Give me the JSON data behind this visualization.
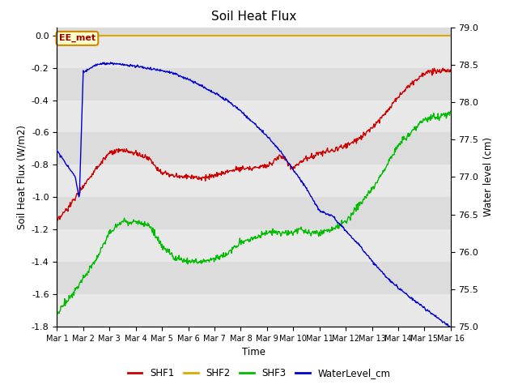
{
  "title": "Soil Heat Flux",
  "xlabel": "Time",
  "ylabel_left": "Soil Heat Flux (W/m2)",
  "ylabel_right": "Water level (cm)",
  "ylim_left": [
    -1.8,
    0.05
  ],
  "ylim_right": [
    75.0,
    79.0
  ],
  "yticks_left": [
    0.0,
    -0.2,
    -0.4,
    -0.6,
    -0.8,
    -1.0,
    -1.2,
    -1.4,
    -1.6,
    -1.8
  ],
  "yticks_right": [
    75.0,
    75.5,
    76.0,
    76.5,
    77.0,
    77.5,
    78.0,
    78.5,
    79.0
  ],
  "bg_color": "#dcdcdc",
  "stripe_light": "#e8e8e8",
  "stripe_dark": "#d0d0d0",
  "fig_color": "#ffffff",
  "annotation_text": "EE_met",
  "annotation_bg": "#ffffcc",
  "annotation_border": "#cc8800",
  "annotation_text_color": "#990000",
  "colors": {
    "SHF1": "#cc0000",
    "SHF2": "#ddaa00",
    "SHF3": "#00bb00",
    "WaterLevel_cm": "#0000cc"
  },
  "legend_labels": [
    "SHF1",
    "SHF2",
    "SHF3",
    "WaterLevel_cm"
  ],
  "x_tick_labels": [
    "Mar 1",
    "Mar 2",
    "Mar 3",
    "Mar 4",
    "Mar 5",
    "Mar 6",
    "Mar 7",
    "Mar 8",
    "Mar 9",
    "Mar 10",
    "Mar 11",
    "Mar 12",
    "Mar 13",
    "Mar 14",
    "Mar 15",
    "Mar 16"
  ],
  "shf1_x": [
    0,
    0.5,
    1.0,
    1.5,
    2.0,
    2.5,
    3.0,
    3.5,
    4.0,
    4.5,
    5.0,
    5.5,
    6.0,
    6.5,
    7.0,
    7.5,
    8.0,
    8.2,
    8.5,
    8.8,
    9.0,
    9.3,
    9.5,
    10.0,
    10.5,
    11.0,
    11.5,
    12.0,
    12.5,
    13.0,
    13.5,
    14.0,
    14.5,
    15.0
  ],
  "shf1_y": [
    -1.15,
    -1.05,
    -0.93,
    -0.82,
    -0.73,
    -0.71,
    -0.73,
    -0.76,
    -0.85,
    -0.87,
    -0.87,
    -0.88,
    -0.87,
    -0.84,
    -0.82,
    -0.82,
    -0.8,
    -0.79,
    -0.74,
    -0.79,
    -0.82,
    -0.78,
    -0.76,
    -0.73,
    -0.71,
    -0.68,
    -0.64,
    -0.57,
    -0.48,
    -0.38,
    -0.3,
    -0.23,
    -0.22,
    -0.22
  ],
  "shf3_x": [
    0,
    0.3,
    0.6,
    1.0,
    1.5,
    2.0,
    2.5,
    3.0,
    3.5,
    4.0,
    4.5,
    5.0,
    5.5,
    6.0,
    6.5,
    7.0,
    7.5,
    8.0,
    8.5,
    9.0,
    9.3,
    9.5,
    10.0,
    10.5,
    11.0,
    11.5,
    12.0,
    12.5,
    13.0,
    13.5,
    14.0,
    14.5,
    15.0
  ],
  "shf3_y": [
    -1.72,
    -1.65,
    -1.6,
    -1.5,
    -1.38,
    -1.22,
    -1.15,
    -1.15,
    -1.17,
    -1.3,
    -1.38,
    -1.4,
    -1.4,
    -1.38,
    -1.35,
    -1.28,
    -1.25,
    -1.22,
    -1.22,
    -1.22,
    -1.2,
    -1.22,
    -1.22,
    -1.2,
    -1.15,
    -1.05,
    -0.95,
    -0.82,
    -0.68,
    -0.6,
    -0.52,
    -0.5,
    -0.48
  ],
  "wl_x": [
    0,
    0.1,
    0.3,
    0.5,
    0.7,
    0.85,
    1.0,
    1.5,
    2.0,
    2.5,
    3.0,
    3.5,
    4.0,
    4.5,
    5.0,
    5.5,
    6.0,
    6.5,
    7.0,
    7.5,
    8.0,
    8.5,
    9.0,
    9.5,
    10.0,
    10.3,
    10.5,
    11.0,
    11.5,
    12.0,
    12.5,
    13.0,
    13.5,
    14.0,
    14.5,
    15.0
  ],
  "wl_y": [
    77.35,
    77.3,
    77.2,
    77.1,
    77.0,
    76.7,
    78.4,
    78.5,
    78.52,
    78.5,
    78.48,
    78.45,
    78.42,
    78.38,
    78.3,
    78.22,
    78.12,
    78.02,
    77.88,
    77.72,
    77.55,
    77.35,
    77.1,
    76.85,
    76.55,
    76.5,
    76.48,
    76.28,
    76.1,
    75.88,
    75.68,
    75.52,
    75.38,
    75.25,
    75.12,
    75.0
  ]
}
